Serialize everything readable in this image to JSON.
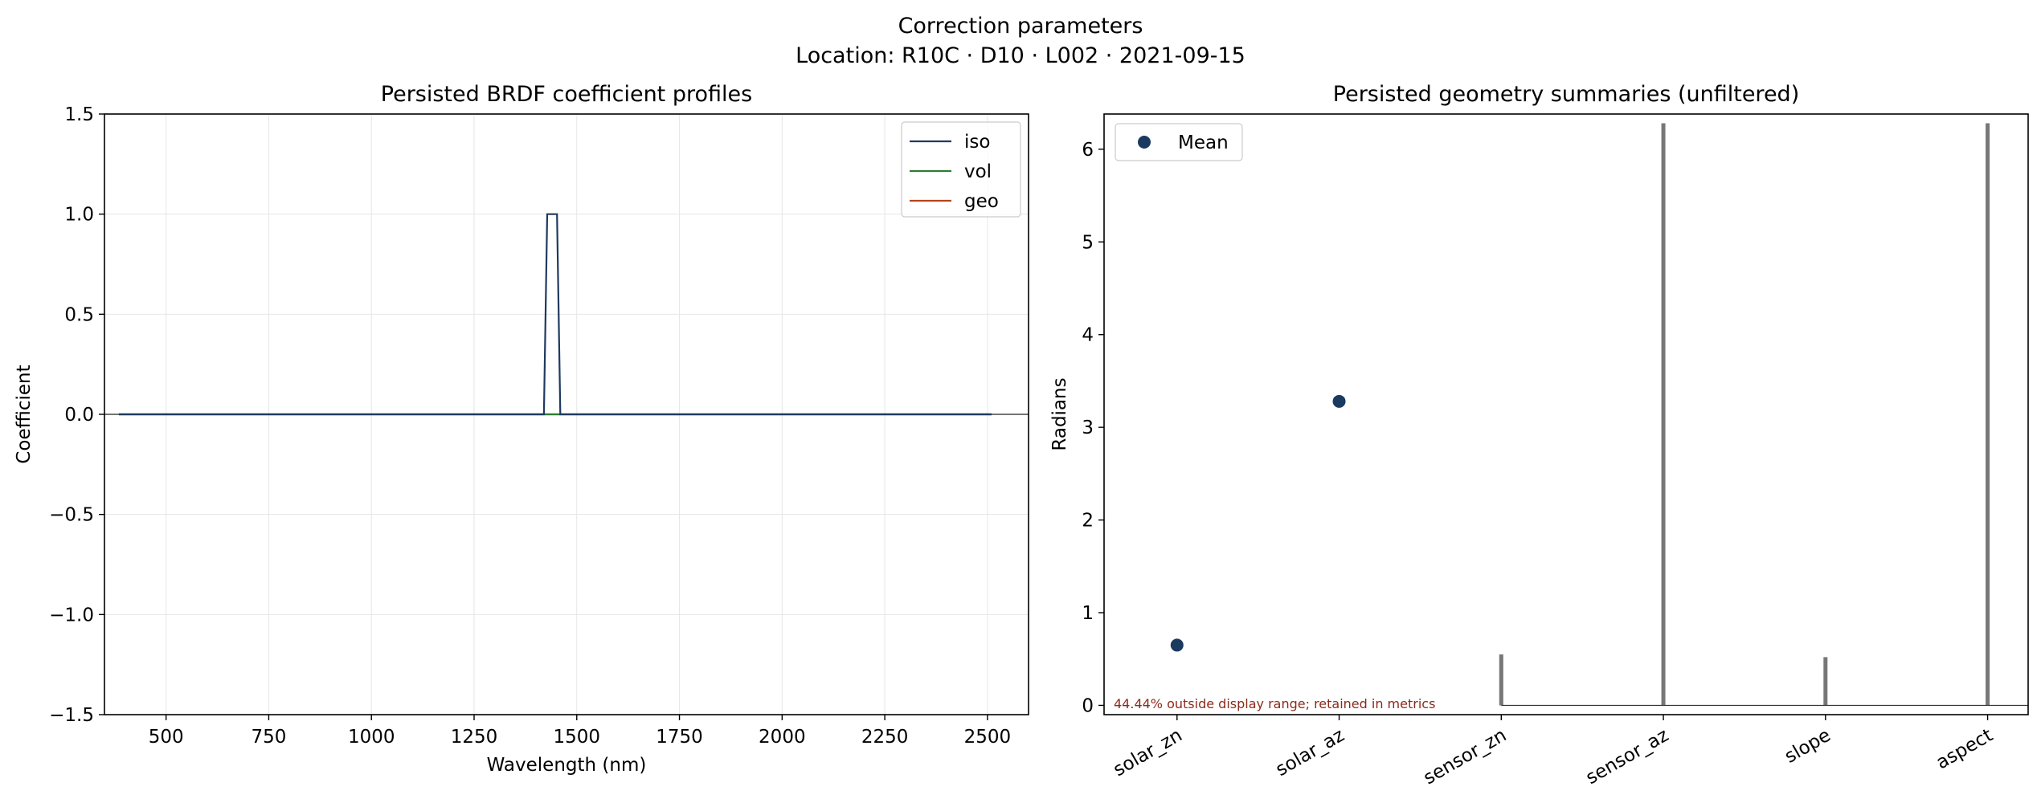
{
  "figure": {
    "title_line1": "Correction parameters",
    "title_line2": "Location: R10C · D10 · L002 · 2021-09-15"
  },
  "chart_data": [
    {
      "type": "line",
      "title": "Persisted BRDF coefficient profiles",
      "xlabel": "Wavelength (nm)",
      "ylabel": "Coefficient",
      "xlim": [
        350,
        2600
      ],
      "ylim": [
        -1.5,
        1.5
      ],
      "xticks": [
        500,
        750,
        1000,
        1250,
        1500,
        1750,
        2000,
        2250,
        2500
      ],
      "yticks": [
        -1.5,
        -1.0,
        -0.5,
        0.0,
        0.5,
        1.0,
        1.5
      ],
      "xtick_labels": [
        "500",
        "750",
        "1000",
        "1250",
        "1500",
        "1750",
        "2000",
        "2250",
        "2500"
      ],
      "ytick_labels": [
        "−1.5",
        "−1.0",
        "−0.5",
        "0.0",
        "0.5",
        "1.0",
        "1.5"
      ],
      "grid": true,
      "legend_position": "top-right",
      "zero_line": true,
      "series": [
        {
          "name": "iso",
          "color": "#1f3a5f",
          "x": [
            385,
            1420,
            1428,
            1452,
            1460,
            2510
          ],
          "y": [
            0,
            0,
            1,
            1,
            0,
            0
          ]
        },
        {
          "name": "vol",
          "color": "#2e7d32",
          "x": [
            385,
            2510
          ],
          "y": [
            0,
            0
          ]
        },
        {
          "name": "geo",
          "color": "#b5451b",
          "x": [
            385,
            2510
          ],
          "y": [
            0,
            0
          ]
        }
      ]
    },
    {
      "type": "scatter",
      "title": "Persisted geometry summaries (unfiltered)",
      "xlabel": "",
      "ylabel": "Radians",
      "categories": [
        "solar_zn",
        "solar_az",
        "sensor_zn",
        "sensor_az",
        "slope",
        "aspect"
      ],
      "ylim": [
        -0.1,
        6.38
      ],
      "yticks": [
        0,
        1,
        2,
        3,
        4,
        5,
        6
      ],
      "ytick_labels": [
        "0",
        "1",
        "2",
        "3",
        "4",
        "5",
        "6"
      ],
      "grid": true,
      "legend_position": "top-left",
      "series": [
        {
          "name": "Mean",
          "color": "#1a3a5f",
          "values": [
            0.65,
            3.28,
            null,
            null,
            null,
            null
          ]
        }
      ],
      "ranges": [
        {
          "category": "sensor_zn",
          "min": 0,
          "max": 0.55
        },
        {
          "category": "sensor_az",
          "min": 0,
          "max": 6.28
        },
        {
          "category": "slope",
          "min": 0,
          "max": 0.52
        },
        {
          "category": "aspect",
          "min": 0,
          "max": 6.28
        }
      ],
      "range_color": "#777777",
      "baseline": {
        "from_category": "sensor_zn",
        "value": 0
      },
      "annotation": "44.44% outside display range; retained in metrics"
    }
  ]
}
